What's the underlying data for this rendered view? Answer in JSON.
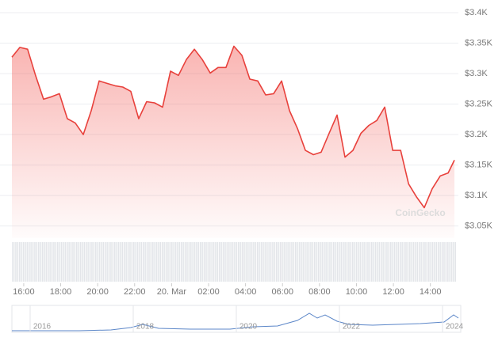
{
  "chart_data": {
    "type": "line",
    "color": "#e8413c",
    "x": [
      15.36,
      15.79,
      16.21,
      16.64,
      17.07,
      17.5,
      17.93,
      18.36,
      18.79,
      19.22,
      19.65,
      20.08,
      20.51,
      20.94,
      21.36,
      21.79,
      22.22,
      22.65,
      23.08,
      23.51,
      23.94,
      24.37,
      24.8,
      25.23,
      25.66,
      26.09,
      26.51,
      26.94,
      27.37,
      27.8,
      28.23,
      28.66,
      29.09,
      29.52,
      29.95,
      30.38,
      30.81,
      31.24,
      31.67,
      32.09,
      32.52,
      32.95,
      33.38,
      33.81,
      34.24,
      34.67,
      35.1,
      35.53,
      35.96,
      36.39,
      36.82,
      37.24,
      37.67,
      38.1,
      38.53,
      38.96,
      39.3
    ],
    "values": [
      3327,
      3343,
      3340,
      3297,
      3258,
      3262,
      3267,
      3226,
      3219,
      3200,
      3239,
      3288,
      3284,
      3280,
      3278,
      3271,
      3226,
      3254,
      3252,
      3245,
      3304,
      3297,
      3323,
      3340,
      3323,
      3301,
      3310,
      3310,
      3345,
      3330,
      3291,
      3288,
      3265,
      3267,
      3288,
      3239,
      3210,
      3174,
      3167,
      3171,
      3202,
      3232,
      3163,
      3174,
      3202,
      3215,
      3223,
      3245,
      3174,
      3174,
      3119,
      3098,
      3080,
      3111,
      3132,
      3137,
      3158
    ],
    "xlim": [
      15.36,
      39.3
    ],
    "xticks": [
      {
        "value": 16,
        "label": "16:00"
      },
      {
        "value": 18,
        "label": "18:00"
      },
      {
        "value": 20,
        "label": "20:00"
      },
      {
        "value": 22,
        "label": "22:00"
      },
      {
        "value": 24,
        "label": "20. Mar"
      },
      {
        "value": 26,
        "label": "02:00"
      },
      {
        "value": 28,
        "label": "04:00"
      },
      {
        "value": 30,
        "label": "06:00"
      },
      {
        "value": 32,
        "label": "08:00"
      },
      {
        "value": 34,
        "label": "10:00"
      },
      {
        "value": 36,
        "label": "12:00"
      },
      {
        "value": 38,
        "label": "14:00"
      }
    ],
    "ylim": [
      3030,
      3400
    ],
    "yticks": [
      {
        "value": 3400,
        "label": "$3.4K"
      },
      {
        "value": 3350,
        "label": "$3.35K"
      },
      {
        "value": 3300,
        "label": "$3.3K"
      },
      {
        "value": 3250,
        "label": "$3.25K"
      },
      {
        "value": 3200,
        "label": "$3.2K"
      },
      {
        "value": 3150,
        "label": "$3.15K"
      },
      {
        "value": 3100,
        "label": "$3.1K"
      },
      {
        "value": 3050,
        "label": "$3.05K"
      }
    ],
    "grid": true
  },
  "watermark": "CoinGecko",
  "navigator": {
    "labels": [
      "2016",
      "2018",
      "2020",
      "2022",
      "2024"
    ]
  }
}
